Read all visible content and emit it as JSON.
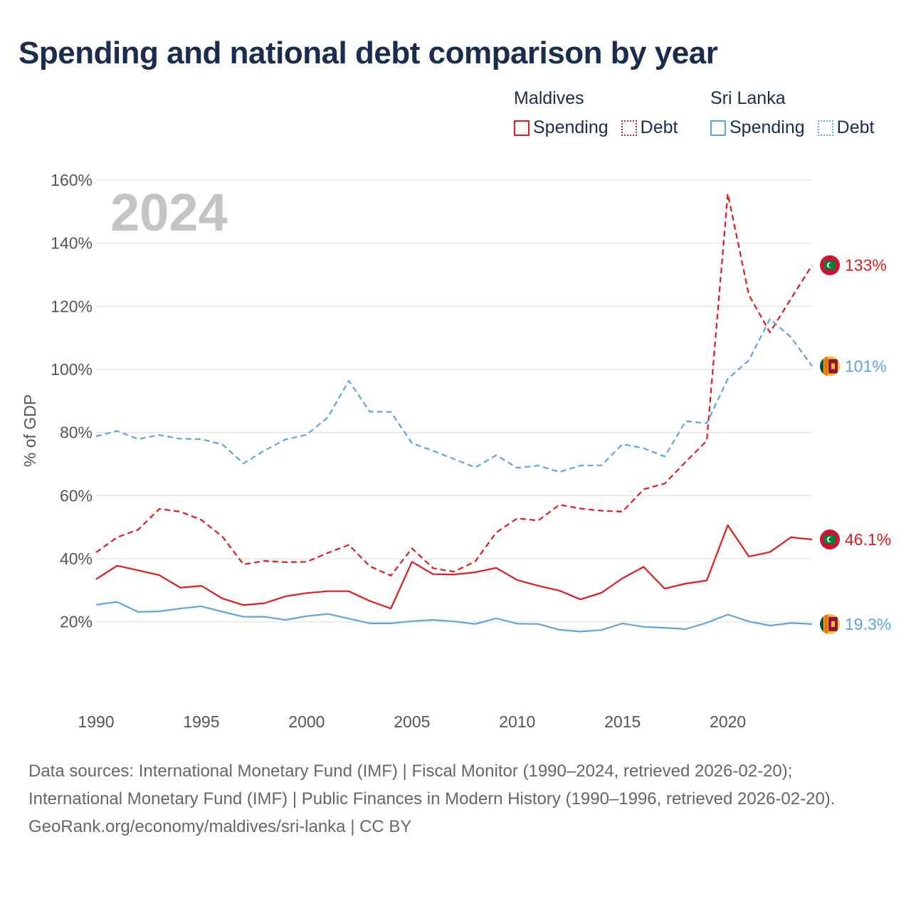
{
  "title": "Spending and national debt comparison by year",
  "legend": {
    "groups": [
      {
        "name": "Maldives",
        "color": "#e31a1c",
        "items": [
          {
            "label": "Spending",
            "style": "solid"
          },
          {
            "label": "Debt",
            "style": "dotted"
          }
        ]
      },
      {
        "name": "Sri Lanka",
        "color": "#5da5e3",
        "items": [
          {
            "label": "Spending",
            "style": "solid"
          },
          {
            "label": "Debt",
            "style": "dotted"
          }
        ]
      }
    ]
  },
  "chart_data": {
    "type": "line",
    "year_overlay": "2024",
    "ylabel": "% of GDP",
    "xlabel": "",
    "xlim": [
      1990,
      2024
    ],
    "ylim": [
      10,
      160
    ],
    "x_ticks": [
      "1990",
      "1995",
      "2000",
      "2005",
      "2010",
      "2015",
      "2020"
    ],
    "x_tick_values": [
      1990,
      1995,
      2000,
      2005,
      2010,
      2015,
      2020
    ],
    "y_ticks": [
      "160%",
      "140%",
      "120%",
      "100%",
      "80%",
      "60%",
      "40%",
      "20%"
    ],
    "y_tick_values": [
      160,
      140,
      120,
      100,
      80,
      60,
      40,
      20
    ],
    "x": [
      1990,
      1991,
      1992,
      1993,
      1994,
      1995,
      1996,
      1997,
      1998,
      1999,
      2000,
      2001,
      2002,
      2003,
      2004,
      2005,
      2006,
      2007,
      2008,
      2009,
      2010,
      2011,
      2012,
      2013,
      2014,
      2015,
      2016,
      2017,
      2018,
      2019,
      2020,
      2021,
      2022,
      2023,
      2024
    ],
    "series": [
      {
        "name": "Maldives Spending",
        "country": "Maldives",
        "metric": "Spending",
        "color": "#e31a1c",
        "dash": "solid",
        "values": [
          33.5,
          37.8,
          36.3,
          34.8,
          30.8,
          31.4,
          27.4,
          25.3,
          25.9,
          28.1,
          29.1,
          29.7,
          29.7,
          26.6,
          24.2,
          39.0,
          35.1,
          35.0,
          35.7,
          37.1,
          33.2,
          31.4,
          29.9,
          27.1,
          29.2,
          33.8,
          37.4,
          30.5,
          32.1,
          33.1,
          50.6,
          40.7,
          42.1,
          46.8,
          46.1
        ],
        "end_label": "46.1%"
      },
      {
        "name": "Maldives Debt",
        "country": "Maldives",
        "metric": "Debt",
        "color": "#e31a1c",
        "dash": "dashed",
        "values": [
          42.0,
          46.8,
          49.2,
          55.8,
          54.9,
          52.3,
          47.0,
          38.2,
          39.3,
          38.9,
          39.0,
          41.8,
          44.4,
          37.6,
          34.6,
          43.3,
          37.0,
          35.9,
          39.1,
          48.3,
          52.8,
          52.1,
          57.1,
          55.9,
          55.2,
          54.9,
          62.0,
          63.8,
          70.7,
          77.4,
          155.7,
          123.6,
          111.7,
          122.4,
          133.0
        ],
        "end_label": "133%"
      },
      {
        "name": "Sri Lanka Spending",
        "country": "Sri Lanka",
        "metric": "Spending",
        "color": "#5da5e3",
        "dash": "solid",
        "values": [
          25.4,
          26.3,
          23.1,
          23.3,
          24.2,
          24.9,
          23.2,
          21.6,
          21.6,
          20.6,
          21.8,
          22.5,
          21.0,
          19.5,
          19.5,
          20.2,
          20.6,
          20.1,
          19.3,
          21.1,
          19.4,
          19.3,
          17.5,
          16.9,
          17.4,
          19.5,
          18.4,
          18.1,
          17.7,
          19.7,
          22.3,
          20.1,
          18.8,
          19.6,
          19.3
        ],
        "end_label": "19.3%"
      },
      {
        "name": "Sri Lanka Debt",
        "country": "Sri Lanka",
        "metric": "Debt",
        "color": "#5da5e3",
        "dash": "dashed",
        "values": [
          78.8,
          80.5,
          77.9,
          79.2,
          78.0,
          77.9,
          76.2,
          70.2,
          74.3,
          77.8,
          79.3,
          84.8,
          96.4,
          86.6,
          86.5,
          76.6,
          74.2,
          71.6,
          68.9,
          72.8,
          68.8,
          69.5,
          67.5,
          69.5,
          69.6,
          76.3,
          75.0,
          72.4,
          83.6,
          82.9,
          97.0,
          102.9,
          116.0,
          110.2,
          101.0
        ],
        "end_label": "101%"
      }
    ]
  },
  "footer": {
    "sources": "Data sources: International Monetary Fund (IMF) | Fiscal Monitor (1990–2024, retrieved 2026-02-20); International Monetary Fund (IMF) | Public Finances in Modern History (1990–1996, retrieved 2026-02-20).",
    "credit": "GeoRank.org/economy/maldives/sri-lanka | CC BY"
  }
}
